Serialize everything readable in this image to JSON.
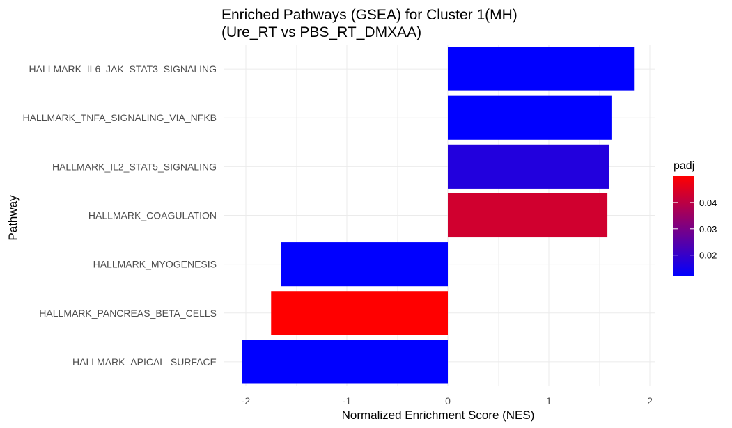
{
  "chart_data": {
    "type": "bar",
    "orientation": "horizontal",
    "title": "Enriched Pathways (GSEA) for Cluster 1(MH)",
    "subtitle": "(Ure_RT vs PBS_RT_DMXAA)",
    "xlabel": "Normalized Enrichment Score (NES)",
    "ylabel": "Pathway",
    "xlim": [
      -2.1,
      2.05
    ],
    "xticks": [
      -2,
      -1,
      0,
      1,
      2
    ],
    "grid": true,
    "categories": [
      "HALLMARK_IL6_JAK_STAT3_SIGNALING",
      "HALLMARK_TNFA_SIGNALING_VIA_NFKB",
      "HALLMARK_IL2_STAT5_SIGNALING",
      "HALLMARK_COAGULATION",
      "HALLMARK_MYOGENESIS",
      "HALLMARK_PANCREAS_BETA_CELLS",
      "HALLMARK_APICAL_SURFACE"
    ],
    "values": [
      1.85,
      1.62,
      1.6,
      1.58,
      -1.65,
      -1.75,
      -2.04
    ],
    "padj": [
      0.012,
      0.012,
      0.017,
      0.043,
      0.012,
      0.05,
      0.012
    ],
    "legend": {
      "title": "padj",
      "position": "right",
      "min": 0.012,
      "max": 0.05,
      "ticks": [
        0.02,
        0.03,
        0.04
      ],
      "tick_labels": [
        "0.02",
        "0.03",
        "0.04"
      ],
      "low_color": "#0000ff",
      "high_color": "#ff0000"
    }
  }
}
